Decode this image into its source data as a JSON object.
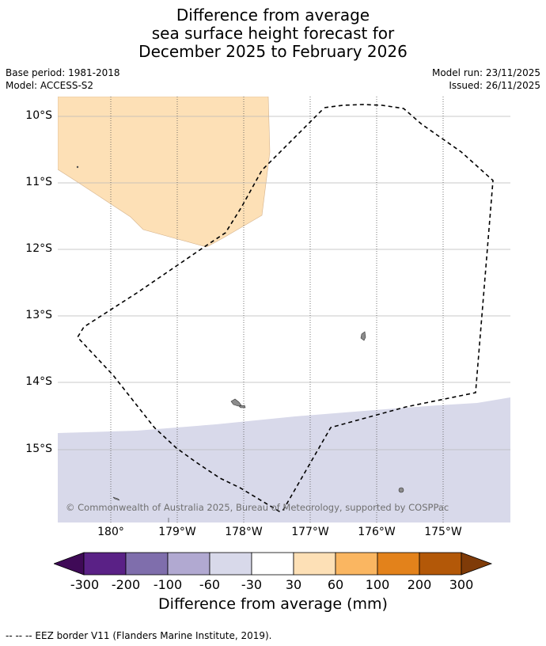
{
  "title": {
    "line1": "Difference from average",
    "line2": "sea surface height forecast for",
    "line3": "December 2025 to February 2026"
  },
  "meta": {
    "base_period": "Base period: 1981-2018",
    "model": "Model: ACCESS-S2",
    "model_run": "Model run: 23/11/2025",
    "issued": "Issued: 26/11/2025"
  },
  "map": {
    "lat_labels": [
      "10°S",
      "11°S",
      "12°S",
      "13°S",
      "14°S",
      "15°S"
    ],
    "lon_labels": [
      "180°",
      "179°W",
      "178°W",
      "177°W",
      "176°W",
      "175°W"
    ],
    "copyright": "© Commonwealth of Australia 2025, Bureau of Meteorology, supported by COSPPac",
    "colors": {
      "positive_anomaly_region": "#fde0b6",
      "negative_anomaly_region": "#d8d9ea",
      "land": "#8c8c8c",
      "eez_border": "#000000"
    }
  },
  "colorbar": {
    "labels": [
      "-300",
      "-200",
      "-100",
      "-60",
      "-30",
      "30",
      "60",
      "100",
      "200",
      "300"
    ],
    "colors": [
      "#3f0a57",
      "#5a2186",
      "#7f6eac",
      "#b1a9d1",
      "#d8d9ea",
      "#ffffff",
      "#fde0b6",
      "#fab661",
      "#e3821b",
      "#b35808",
      "#7f3b08"
    ],
    "title": "Difference from average (mm)"
  },
  "footer": "--  --  -- EEZ border V11 (Flanders Marine Institute, 2019)."
}
